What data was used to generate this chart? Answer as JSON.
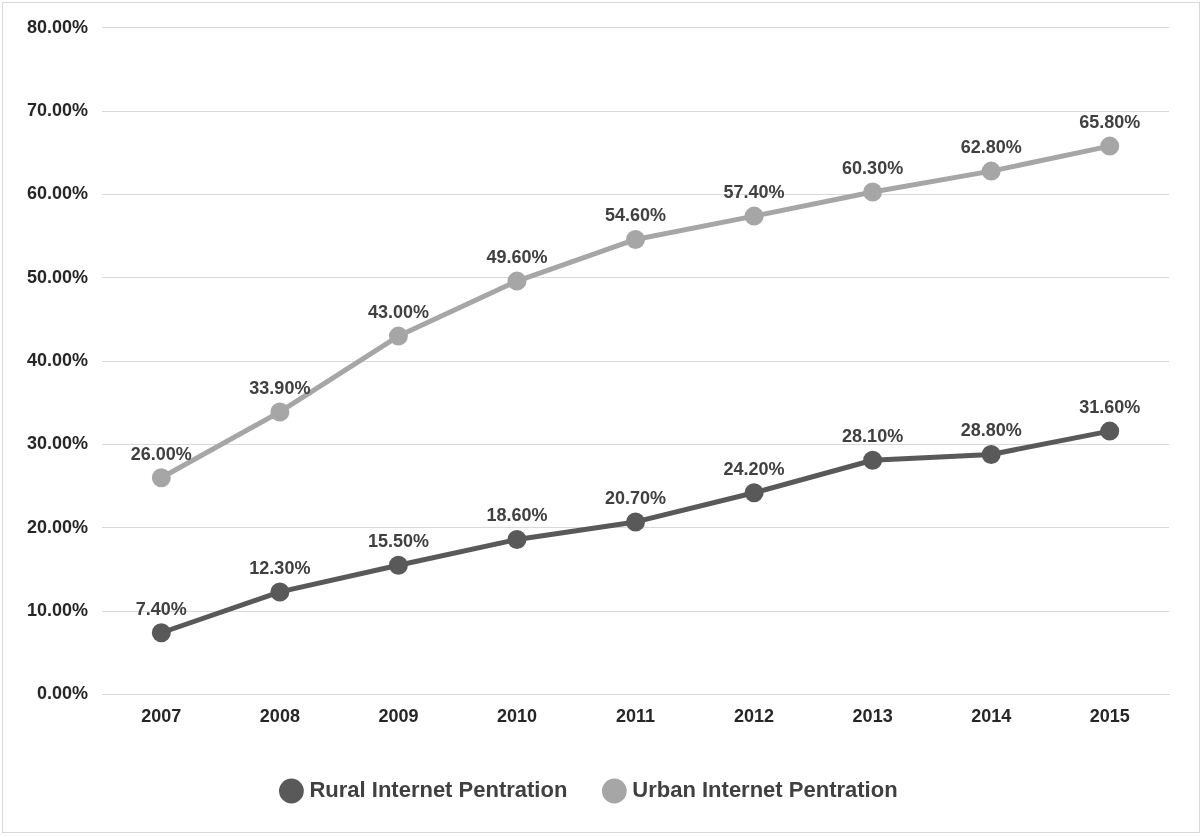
{
  "chart_data": {
    "type": "line",
    "categories": [
      "2007",
      "2008",
      "2009",
      "2010",
      "2011",
      "2012",
      "2013",
      "2014",
      "2015"
    ],
    "series": [
      {
        "name": "Rural Internet Pentration",
        "color": "#595959",
        "values": [
          7.4,
          12.3,
          15.5,
          18.6,
          20.7,
          24.2,
          28.1,
          28.8,
          31.6
        ],
        "value_labels": [
          "7.40%",
          "12.30%",
          "15.50%",
          "18.60%",
          "20.70%",
          "24.20%",
          "28.10%",
          "28.80%",
          "31.60%"
        ]
      },
      {
        "name": "Urban Internet Pentration",
        "color": "#a6a6a6",
        "values": [
          26.0,
          33.9,
          43.0,
          49.6,
          54.6,
          57.4,
          60.3,
          62.8,
          65.8
        ],
        "value_labels": [
          "26.00%",
          "33.90%",
          "43.00%",
          "49.60%",
          "54.60%",
          "57.40%",
          "60.30%",
          "62.80%",
          "65.80%"
        ]
      }
    ],
    "ylim": [
      0,
      80
    ],
    "yticks": [
      {
        "value": 0,
        "label": "0.00%"
      },
      {
        "value": 10,
        "label": "10.00%"
      },
      {
        "value": 20,
        "label": "20.00%"
      },
      {
        "value": 30,
        "label": "30.00%"
      },
      {
        "value": 40,
        "label": "40.00%"
      },
      {
        "value": 50,
        "label": "50.00%"
      },
      {
        "value": 60,
        "label": "60.00%"
      },
      {
        "value": 70,
        "label": "70.00%"
      },
      {
        "value": 80,
        "label": "80.00%"
      }
    ],
    "grid": "y",
    "legend": "bottom",
    "marker": "circle",
    "line_style": "solid"
  }
}
